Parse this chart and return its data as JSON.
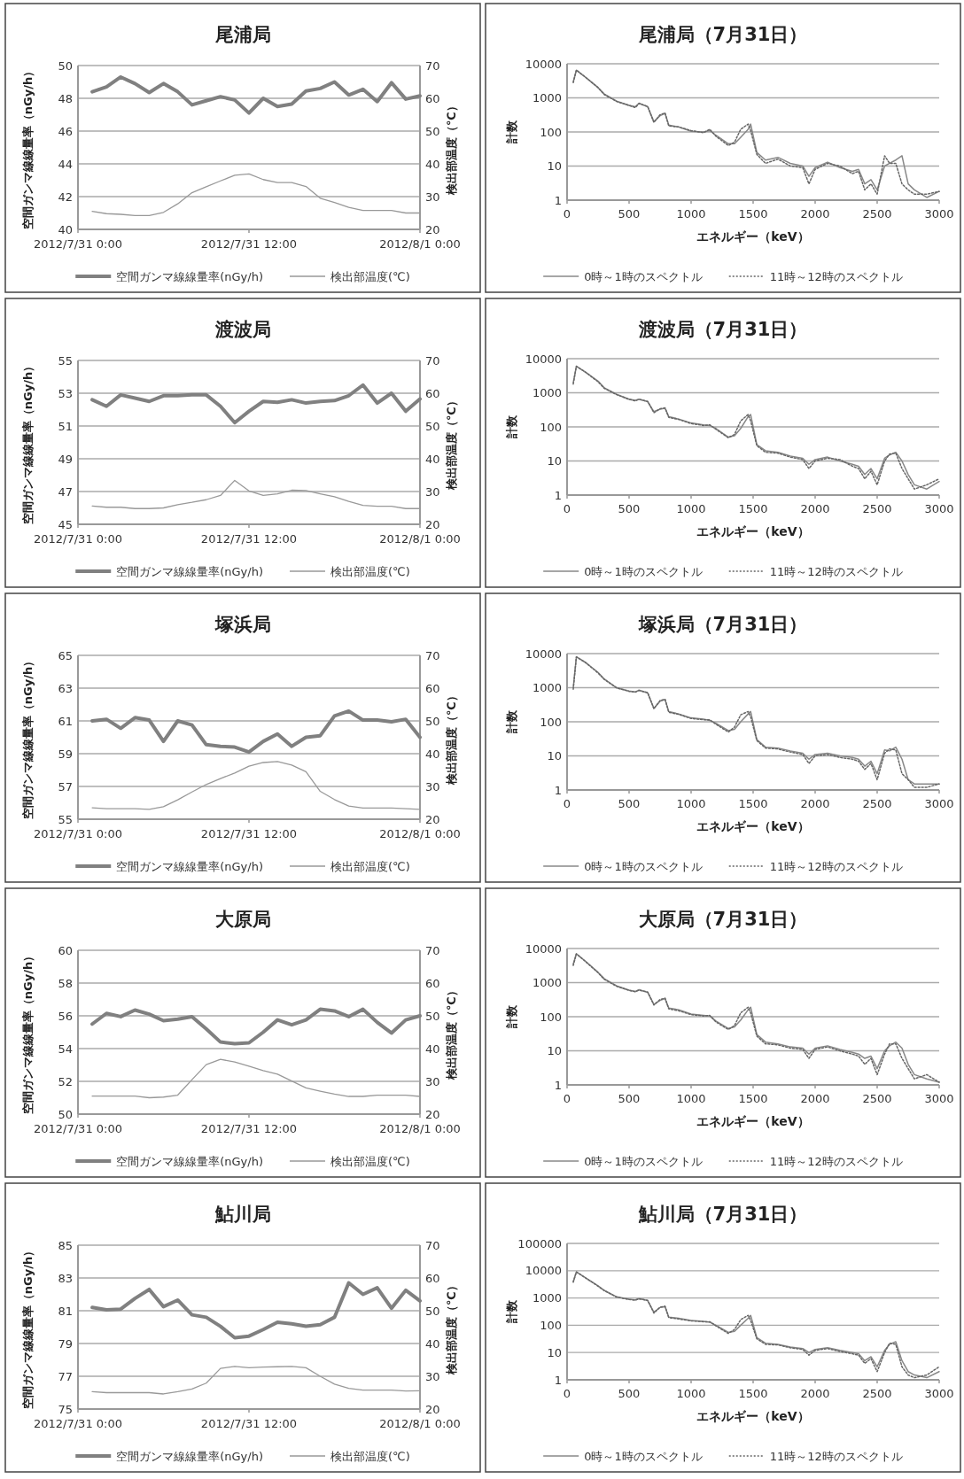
{
  "chart_data": [
    {
      "type": "line",
      "title": "尾浦局",
      "ylabel": "空間ガンマ線線量率（nGy/h）",
      "y2label": "検出部温度（℃）",
      "x": [
        "2012-07-31T01:00",
        "2012-07-31T02:00",
        "2012-07-31T03:00",
        "2012-07-31T04:00",
        "2012-07-31T05:00",
        "2012-07-31T06:00",
        "2012-07-31T07:00",
        "2012-07-31T08:00",
        "2012-07-31T09:00",
        "2012-07-31T10:00",
        "2012-07-31T11:00",
        "2012-07-31T12:00",
        "2012-07-31T13:00",
        "2012-07-31T14:00",
        "2012-07-31T15:00",
        "2012-07-31T16:00",
        "2012-07-31T17:00",
        "2012-07-31T18:00",
        "2012-07-31T19:00",
        "2012-07-31T20:00",
        "2012-07-31T21:00",
        "2012-07-31T22:00",
        "2012-07-31T23:00",
        "2012-08-01T00:00"
      ],
      "xlim": [
        "2012-07-31T00:00",
        "2012-08-01T00:00"
      ],
      "xticks": [
        {
          "value": "2012-07-31T00:00",
          "label": "2012/7/31 0:00"
        },
        {
          "value": "2012-07-31T12:00",
          "label": "2012/7/31 12:00"
        },
        {
          "value": "2012-08-01T00:00",
          "label": "2012/8/1 0:00"
        }
      ],
      "ylim": [
        40,
        50
      ],
      "yticks": [
        40,
        42,
        44,
        46,
        48,
        50
      ],
      "y2lim": [
        20,
        70
      ],
      "y2ticks": [
        20,
        30,
        40,
        50,
        60,
        70
      ],
      "grid": "y",
      "legend": "bottom",
      "series": [
        {
          "name": "空間ガンマ線線量率(nGy/h)",
          "color": "#808080",
          "values": [
            48.4,
            48.7,
            49.3,
            48.9,
            48.35,
            48.9,
            48.4,
            47.6,
            47.85,
            48.1,
            47.9,
            47.1,
            48.0,
            47.5,
            47.65,
            48.45,
            48.6,
            49.0,
            48.2,
            48.55,
            47.8,
            48.95,
            47.95,
            48.15
          ]
        },
        {
          "name": "検出部温度(℃)",
          "color": "#999999",
          "axis": "y2",
          "values": [
            25.5,
            24.8,
            24.6,
            24.2,
            24.2,
            25.2,
            27.8,
            31.2,
            33.0,
            34.8,
            36.5,
            36.9,
            35.2,
            34.3,
            34.3,
            33.1,
            29.5,
            28.2,
            26.7,
            25.8,
            25.8,
            25.8,
            25.0,
            25.0
          ]
        }
      ]
    },
    {
      "type": "line",
      "title": "尾浦局（7月31日）",
      "xlabel": "エネルギー（keV）",
      "ylabel": "計数",
      "log": "y",
      "x": [
        50,
        75,
        150,
        250,
        300,
        400,
        500,
        550,
        580,
        650,
        700,
        750,
        790,
        820,
        900,
        1000,
        1100,
        1150,
        1200,
        1300,
        1350,
        1400,
        1460,
        1480,
        1530,
        1600,
        1700,
        1800,
        1900,
        1950,
        2000,
        2100,
        2200,
        2300,
        2350,
        2400,
        2450,
        2500,
        2560,
        2600,
        2650,
        2700,
        2750,
        2800,
        2900,
        3000
      ],
      "xlim": [
        0,
        3000
      ],
      "xticks": [
        0,
        500,
        1000,
        1500,
        2000,
        2500,
        3000
      ],
      "ylim": [
        1,
        10000
      ],
      "yticks": [
        1,
        10,
        100,
        1000,
        10000
      ],
      "grid": "y",
      "legend": "bottom",
      "series": [
        {
          "name": "0時～1時のスペクトル",
          "color": "#888888",
          "line_style": "solid",
          "values": [
            3000,
            6500,
            4000,
            2000,
            1300,
            800,
            600,
            550,
            700,
            550,
            200,
            300,
            350,
            160,
            140,
            105,
            100,
            110,
            80,
            45,
            45,
            70,
            120,
            170,
            25,
            15,
            18,
            12,
            10,
            5,
            9,
            13,
            9,
            7,
            8,
            3,
            4,
            2,
            10,
            12,
            15,
            20,
            3,
            2,
            1.2,
            1.8
          ]
        },
        {
          "name": "11時～12時のスペクトル",
          "color": "#666666",
          "line_style": "dotted",
          "values": [
            2800,
            6500,
            4000,
            2000,
            1250,
            780,
            600,
            520,
            680,
            560,
            190,
            320,
            360,
            150,
            140,
            110,
            95,
            120,
            75,
            40,
            50,
            120,
            170,
            110,
            22,
            12,
            16,
            10,
            9,
            3,
            8,
            12,
            10,
            6,
            7,
            2,
            3,
            1.5,
            20,
            12,
            12,
            3,
            2,
            1.5,
            1.5,
            1.8
          ]
        }
      ]
    },
    {
      "type": "line",
      "title": "渡波局",
      "ylabel": "空間ガンマ線線量率（nGy/h）",
      "y2label": "検出部温度（℃）",
      "x": [
        "2012-07-31T01:00",
        "2012-07-31T02:00",
        "2012-07-31T03:00",
        "2012-07-31T04:00",
        "2012-07-31T05:00",
        "2012-07-31T06:00",
        "2012-07-31T07:00",
        "2012-07-31T08:00",
        "2012-07-31T09:00",
        "2012-07-31T10:00",
        "2012-07-31T11:00",
        "2012-07-31T12:00",
        "2012-07-31T13:00",
        "2012-07-31T14:00",
        "2012-07-31T15:00",
        "2012-07-31T16:00",
        "2012-07-31T17:00",
        "2012-07-31T18:00",
        "2012-07-31T19:00",
        "2012-07-31T20:00",
        "2012-07-31T21:00",
        "2012-07-31T22:00",
        "2012-07-31T23:00",
        "2012-08-01T00:00"
      ],
      "xlim": [
        "2012-07-31T00:00",
        "2012-08-01T00:00"
      ],
      "xticks": [
        {
          "value": "2012-07-31T00:00",
          "label": "2012/7/31 0:00"
        },
        {
          "value": "2012-07-31T12:00",
          "label": "2012/7/31 12:00"
        },
        {
          "value": "2012-08-01T00:00",
          "label": "2012/8/1 0:00"
        }
      ],
      "ylim": [
        45,
        55
      ],
      "yticks": [
        45,
        47,
        49,
        51,
        53,
        55
      ],
      "y2lim": [
        20,
        70
      ],
      "y2ticks": [
        20,
        30,
        40,
        50,
        60,
        70
      ],
      "grid": "y",
      "legend": "bottom",
      "series": [
        {
          "name": "空間ガンマ線線量率(nGy/h)",
          "color": "#808080",
          "values": [
            52.6,
            52.2,
            52.9,
            52.7,
            52.5,
            52.85,
            52.85,
            52.9,
            52.9,
            52.2,
            51.2,
            51.9,
            52.5,
            52.45,
            52.6,
            52.4,
            52.5,
            52.55,
            52.85,
            53.5,
            52.4,
            53.0,
            51.9,
            52.65
          ]
        },
        {
          "name": "検出部温度(℃)",
          "color": "#999999",
          "axis": "y2",
          "values": [
            25.6,
            25.2,
            25.2,
            24.8,
            24.8,
            25.0,
            26.0,
            26.7,
            27.5,
            28.8,
            33.4,
            30.2,
            28.8,
            29.3,
            30.4,
            30.3,
            29.3,
            28.4,
            27.0,
            25.8,
            25.5,
            25.5,
            24.8,
            24.8
          ]
        }
      ]
    },
    {
      "type": "line",
      "title": "渡波局（7月31日）",
      "xlabel": "エネルギー（keV）",
      "ylabel": "計数",
      "log": "y",
      "x": [
        50,
        75,
        150,
        250,
        300,
        400,
        500,
        550,
        580,
        650,
        700,
        750,
        790,
        820,
        900,
        1000,
        1100,
        1150,
        1200,
        1300,
        1350,
        1400,
        1460,
        1480,
        1530,
        1600,
        1700,
        1800,
        1900,
        1950,
        2000,
        2100,
        2200,
        2300,
        2350,
        2400,
        2450,
        2500,
        2560,
        2600,
        2650,
        2700,
        2750,
        2800,
        2900,
        3000
      ],
      "xlim": [
        0,
        3000
      ],
      "xticks": [
        0,
        500,
        1000,
        1500,
        2000,
        2500,
        3000
      ],
      "ylim": [
        1,
        10000
      ],
      "yticks": [
        1,
        10,
        100,
        1000,
        10000
      ],
      "grid": "y",
      "legend": "bottom",
      "series": [
        {
          "name": "0時～1時のスペクトル",
          "color": "#888888",
          "line_style": "solid",
          "values": [
            2000,
            6000,
            4000,
            2200,
            1400,
            900,
            650,
            600,
            650,
            550,
            280,
            330,
            350,
            200,
            170,
            130,
            115,
            110,
            90,
            50,
            55,
            90,
            200,
            230,
            30,
            20,
            18,
            14,
            12,
            8,
            11,
            13,
            10,
            8,
            7,
            4,
            6,
            3,
            12,
            15,
            18,
            10,
            4,
            2,
            1.5,
            2.5
          ]
        },
        {
          "name": "11時～12時のスペクトル",
          "color": "#666666",
          "line_style": "dotted",
          "values": [
            1800,
            6000,
            4000,
            2100,
            1350,
            880,
            640,
            580,
            640,
            560,
            260,
            340,
            360,
            190,
            165,
            125,
            110,
            115,
            85,
            48,
            60,
            150,
            230,
            150,
            28,
            18,
            17,
            13,
            11,
            6,
            10,
            12,
            11,
            7,
            6,
            3,
            5,
            2,
            10,
            16,
            17,
            6,
            3,
            1.5,
            2,
            3
          ]
        }
      ]
    },
    {
      "type": "line",
      "title": "塚浜局",
      "ylabel": "空間ガンマ線線量率（nGy/h）",
      "y2label": "検出部温度（℃）",
      "x": [
        "2012-07-31T01:00",
        "2012-07-31T02:00",
        "2012-07-31T03:00",
        "2012-07-31T04:00",
        "2012-07-31T05:00",
        "2012-07-31T06:00",
        "2012-07-31T07:00",
        "2012-07-31T08:00",
        "2012-07-31T09:00",
        "2012-07-31T10:00",
        "2012-07-31T11:00",
        "2012-07-31T12:00",
        "2012-07-31T13:00",
        "2012-07-31T14:00",
        "2012-07-31T15:00",
        "2012-07-31T16:00",
        "2012-07-31T17:00",
        "2012-07-31T18:00",
        "2012-07-31T19:00",
        "2012-07-31T20:00",
        "2012-07-31T21:00",
        "2012-07-31T22:00",
        "2012-07-31T23:00",
        "2012-08-01T00:00"
      ],
      "xlim": [
        "2012-07-31T00:00",
        "2012-08-01T00:00"
      ],
      "xticks": [
        {
          "value": "2012-07-31T00:00",
          "label": "2012/7/31 0:00"
        },
        {
          "value": "2012-07-31T12:00",
          "label": "2012/7/31 12:00"
        },
        {
          "value": "2012-08-01T00:00",
          "label": "2012/8/1 0:00"
        }
      ],
      "ylim": [
        55,
        65
      ],
      "yticks": [
        55,
        57,
        59,
        61,
        63,
        65
      ],
      "y2lim": [
        20,
        70
      ],
      "y2ticks": [
        20,
        30,
        40,
        50,
        60,
        70
      ],
      "grid": "y",
      "legend": "bottom",
      "series": [
        {
          "name": "空間ガンマ線線量率(nGy/h)",
          "color": "#808080",
          "values": [
            61.0,
            61.1,
            60.55,
            61.2,
            61.05,
            59.75,
            61.0,
            60.75,
            59.55,
            59.45,
            59.4,
            59.1,
            59.75,
            60.2,
            59.45,
            60.0,
            60.1,
            61.3,
            61.6,
            61.05,
            61.05,
            60.95,
            61.1,
            60.0
          ]
        },
        {
          "name": "検出部温度(℃)",
          "color": "#999999",
          "axis": "y2",
          "values": [
            23.5,
            23.2,
            23.2,
            23.2,
            23.0,
            23.8,
            25.9,
            28.3,
            30.6,
            32.4,
            34.1,
            36.2,
            37.3,
            37.6,
            36.5,
            34.5,
            28.5,
            26.0,
            24.0,
            23.4,
            23.4,
            23.4,
            23.2,
            23.0
          ]
        }
      ]
    },
    {
      "type": "line",
      "title": "塚浜局（7月31日）",
      "xlabel": "エネルギー（keV）",
      "ylabel": "計数",
      "log": "y",
      "x": [
        50,
        75,
        150,
        250,
        300,
        400,
        500,
        550,
        580,
        650,
        700,
        750,
        790,
        820,
        900,
        1000,
        1100,
        1150,
        1200,
        1300,
        1350,
        1400,
        1460,
        1480,
        1530,
        1600,
        1700,
        1800,
        1900,
        1950,
        2000,
        2100,
        2200,
        2300,
        2350,
        2400,
        2450,
        2500,
        2560,
        2600,
        2650,
        2700,
        2750,
        2800,
        2900,
        3000
      ],
      "xlim": [
        0,
        3000
      ],
      "xticks": [
        0,
        500,
        1000,
        1500,
        2000,
        2500,
        3000
      ],
      "ylim": [
        1,
        10000
      ],
      "yticks": [
        1,
        10,
        100,
        1000,
        10000
      ],
      "grid": "y",
      "legend": "bottom",
      "series": [
        {
          "name": "0時～1時のスペクトル",
          "color": "#888888",
          "line_style": "solid",
          "values": [
            1000,
            8000,
            5500,
            2800,
            1800,
            1000,
            800,
            750,
            850,
            700,
            250,
            400,
            450,
            200,
            170,
            130,
            120,
            110,
            90,
            55,
            60,
            100,
            170,
            200,
            30,
            18,
            17,
            14,
            12,
            8,
            11,
            12,
            10,
            9,
            8,
            5,
            7,
            3,
            15,
            14,
            18,
            8,
            2,
            1.5,
            1.5,
            1.5
          ]
        },
        {
          "name": "11時～12時のスペクトル",
          "color": "#666666",
          "line_style": "dotted",
          "values": [
            900,
            8000,
            5400,
            2700,
            1750,
            980,
            780,
            740,
            830,
            720,
            240,
            420,
            460,
            190,
            165,
            125,
            115,
            115,
            85,
            50,
            70,
            160,
            200,
            140,
            28,
            17,
            16,
            13,
            11,
            6,
            10,
            11,
            9,
            8,
            7,
            4,
            6,
            2,
            12,
            16,
            15,
            3,
            2,
            1.2,
            1.2,
            1.5
          ]
        }
      ]
    },
    {
      "type": "line",
      "title": "大原局",
      "ylabel": "空間ガンマ線線量率（nGy/h）",
      "y2label": "検出部温度（℃）",
      "x": [
        "2012-07-31T01:00",
        "2012-07-31T02:00",
        "2012-07-31T03:00",
        "2012-07-31T04:00",
        "2012-07-31T05:00",
        "2012-07-31T06:00",
        "2012-07-31T07:00",
        "2012-07-31T08:00",
        "2012-07-31T09:00",
        "2012-07-31T10:00",
        "2012-07-31T11:00",
        "2012-07-31T12:00",
        "2012-07-31T13:00",
        "2012-07-31T14:00",
        "2012-07-31T15:00",
        "2012-07-31T16:00",
        "2012-07-31T17:00",
        "2012-07-31T18:00",
        "2012-07-31T19:00",
        "2012-07-31T20:00",
        "2012-07-31T21:00",
        "2012-07-31T22:00",
        "2012-07-31T23:00",
        "2012-08-01T00:00"
      ],
      "xlim": [
        "2012-07-31T00:00",
        "2012-08-01T00:00"
      ],
      "xticks": [
        {
          "value": "2012-07-31T00:00",
          "label": "2012/7/31 0:00"
        },
        {
          "value": "2012-07-31T12:00",
          "label": "2012/7/31 12:00"
        },
        {
          "value": "2012-08-01T00:00",
          "label": "2012/8/1 0:00"
        }
      ],
      "ylim": [
        50,
        60
      ],
      "yticks": [
        50,
        52,
        54,
        56,
        58,
        60
      ],
      "y2lim": [
        20,
        70
      ],
      "y2ticks": [
        20,
        30,
        40,
        50,
        60,
        70
      ],
      "grid": "y",
      "legend": "bottom",
      "series": [
        {
          "name": "空間ガンマ線線量率(nGy/h)",
          "color": "#808080",
          "values": [
            55.5,
            56.15,
            55.95,
            56.35,
            56.1,
            55.7,
            55.8,
            55.95,
            55.2,
            54.4,
            54.3,
            54.35,
            55.0,
            55.75,
            55.45,
            55.75,
            56.4,
            56.3,
            55.95,
            56.4,
            55.6,
            54.95,
            55.75,
            56.0
          ]
        },
        {
          "name": "検出部温度(℃)",
          "color": "#999999",
          "axis": "y2",
          "values": [
            25.5,
            25.5,
            25.5,
            25.5,
            25.0,
            25.2,
            25.8,
            30.5,
            35.1,
            36.7,
            35.9,
            34.6,
            33.3,
            32.2,
            30.1,
            28.0,
            27.0,
            26.1,
            25.4,
            25.4,
            25.8,
            25.8,
            25.8,
            25.4
          ]
        }
      ]
    },
    {
      "type": "line",
      "title": "大原局（7月31日）",
      "xlabel": "エネルギー（keV）",
      "ylabel": "計数",
      "log": "y",
      "x": [
        50,
        75,
        150,
        250,
        300,
        400,
        500,
        550,
        580,
        650,
        700,
        750,
        790,
        820,
        900,
        1000,
        1100,
        1150,
        1200,
        1300,
        1350,
        1400,
        1460,
        1480,
        1530,
        1600,
        1700,
        1800,
        1900,
        1950,
        2000,
        2100,
        2200,
        2300,
        2350,
        2400,
        2450,
        2500,
        2560,
        2600,
        2650,
        2700,
        2750,
        2800,
        2900,
        3000
      ],
      "xlim": [
        0,
        3000
      ],
      "xticks": [
        0,
        500,
        1000,
        1500,
        2000,
        2500,
        3000
      ],
      "ylim": [
        1,
        10000
      ],
      "yticks": [
        1,
        10,
        100,
        1000,
        10000
      ],
      "grid": "y",
      "legend": "bottom",
      "series": [
        {
          "name": "0時～1時のスペクトル",
          "color": "#888888",
          "line_style": "solid",
          "values": [
            3500,
            7000,
            4200,
            2000,
            1300,
            800,
            600,
            550,
            620,
            520,
            230,
            300,
            340,
            180,
            160,
            120,
            110,
            105,
            75,
            45,
            50,
            80,
            160,
            190,
            30,
            18,
            16,
            13,
            12,
            8,
            12,
            14,
            11,
            9,
            8,
            6,
            7,
            3,
            10,
            14,
            18,
            12,
            4,
            2,
            1.5,
            1.2
          ]
        },
        {
          "name": "11時～12時のスペクトル",
          "color": "#666666",
          "line_style": "dotted",
          "values": [
            3200,
            7000,
            4100,
            1950,
            1250,
            780,
            590,
            540,
            600,
            530,
            220,
            320,
            350,
            170,
            150,
            115,
            105,
            110,
            70,
            42,
            55,
            130,
            190,
            130,
            27,
            16,
            15,
            12,
            11,
            6,
            11,
            13,
            10,
            8,
            7,
            4,
            6,
            2,
            8,
            16,
            16,
            6,
            3,
            1.5,
            2,
            1.2
          ]
        }
      ]
    },
    {
      "type": "line",
      "title": "鮎川局",
      "ylabel": "空間ガンマ線線量率（nGy/h）",
      "y2label": "検出部温度（℃）",
      "x": [
        "2012-07-31T01:00",
        "2012-07-31T02:00",
        "2012-07-31T03:00",
        "2012-07-31T04:00",
        "2012-07-31T05:00",
        "2012-07-31T06:00",
        "2012-07-31T07:00",
        "2012-07-31T08:00",
        "2012-07-31T09:00",
        "2012-07-31T10:00",
        "2012-07-31T11:00",
        "2012-07-31T12:00",
        "2012-07-31T13:00",
        "2012-07-31T14:00",
        "2012-07-31T15:00",
        "2012-07-31T16:00",
        "2012-07-31T17:00",
        "2012-07-31T18:00",
        "2012-07-31T19:00",
        "2012-07-31T20:00",
        "2012-07-31T21:00",
        "2012-07-31T22:00",
        "2012-07-31T23:00",
        "2012-08-01T00:00"
      ],
      "xlim": [
        "2012-07-31T00:00",
        "2012-08-01T00:00"
      ],
      "xticks": [
        {
          "value": "2012-07-31T00:00",
          "label": "2012/7/31 0:00"
        },
        {
          "value": "2012-07-31T12:00",
          "label": "2012/7/31 12:00"
        },
        {
          "value": "2012-08-01T00:00",
          "label": "2012/8/1 0:00"
        }
      ],
      "ylim": [
        75,
        85
      ],
      "yticks": [
        75,
        77,
        79,
        81,
        83,
        85
      ],
      "y2lim": [
        20,
        70
      ],
      "y2ticks": [
        20,
        30,
        40,
        50,
        60,
        70
      ],
      "grid": "y",
      "legend": "bottom",
      "series": [
        {
          "name": "空間ガンマ線線量率(nGy/h)",
          "color": "#808080",
          "values": [
            81.2,
            81.05,
            81.1,
            81.75,
            82.3,
            81.25,
            81.65,
            80.75,
            80.6,
            80.05,
            79.35,
            79.45,
            79.85,
            80.3,
            80.2,
            80.05,
            80.15,
            80.6,
            82.7,
            82.0,
            82.4,
            81.15,
            82.25,
            81.6
          ]
        },
        {
          "name": "検出部温度(℃)",
          "color": "#999999",
          "axis": "y2",
          "values": [
            25.3,
            25.0,
            25.0,
            25.0,
            25.0,
            24.6,
            25.3,
            26.1,
            27.9,
            32.4,
            33.0,
            32.6,
            32.8,
            32.9,
            33.0,
            32.6,
            30.0,
            27.6,
            26.3,
            25.8,
            25.8,
            25.8,
            25.5,
            25.6
          ]
        }
      ]
    },
    {
      "type": "line",
      "title": "鮎川局（7月31日）",
      "xlabel": "エネルギー（keV）",
      "ylabel": "計数",
      "log": "y",
      "x": [
        50,
        75,
        150,
        250,
        300,
        400,
        500,
        550,
        580,
        650,
        700,
        750,
        790,
        820,
        900,
        1000,
        1100,
        1150,
        1200,
        1300,
        1350,
        1400,
        1460,
        1480,
        1530,
        1600,
        1700,
        1800,
        1900,
        1950,
        2000,
        2100,
        2200,
        2300,
        2350,
        2400,
        2450,
        2500,
        2560,
        2600,
        2650,
        2700,
        2750,
        2800,
        2900,
        3000
      ],
      "xlim": [
        0,
        3000
      ],
      "xticks": [
        0,
        500,
        1000,
        1500,
        2000,
        2500,
        3000
      ],
      "ylim": [
        1,
        100000
      ],
      "yticks": [
        1,
        10,
        100,
        1000,
        10000,
        100000
      ],
      "grid": "y",
      "legend": "bottom",
      "series": [
        {
          "name": "0時～1時のスペクトル",
          "color": "#888888",
          "line_style": "solid",
          "values": [
            4000,
            9000,
            5500,
            2800,
            1900,
            1100,
            900,
            850,
            950,
            800,
            300,
            450,
            480,
            200,
            180,
            150,
            140,
            130,
            100,
            55,
            60,
            100,
            180,
            230,
            35,
            22,
            20,
            16,
            14,
            10,
            13,
            15,
            12,
            10,
            9,
            5,
            7,
            3,
            12,
            20,
            25,
            5,
            2,
            1.5,
            1.2,
            2
          ]
        },
        {
          "name": "11時～12時のスペクトル",
          "color": "#666666",
          "line_style": "dotted",
          "values": [
            3800,
            9000,
            5400,
            2700,
            1850,
            1080,
            880,
            830,
            930,
            820,
            280,
            460,
            500,
            190,
            170,
            145,
            135,
            135,
            95,
            50,
            70,
            160,
            230,
            150,
            32,
            20,
            19,
            15,
            13,
            8,
            12,
            14,
            11,
            9,
            8,
            4,
            6,
            2,
            10,
            22,
            20,
            3,
            1.5,
            1.2,
            1.5,
            3
          ]
        }
      ]
    }
  ]
}
